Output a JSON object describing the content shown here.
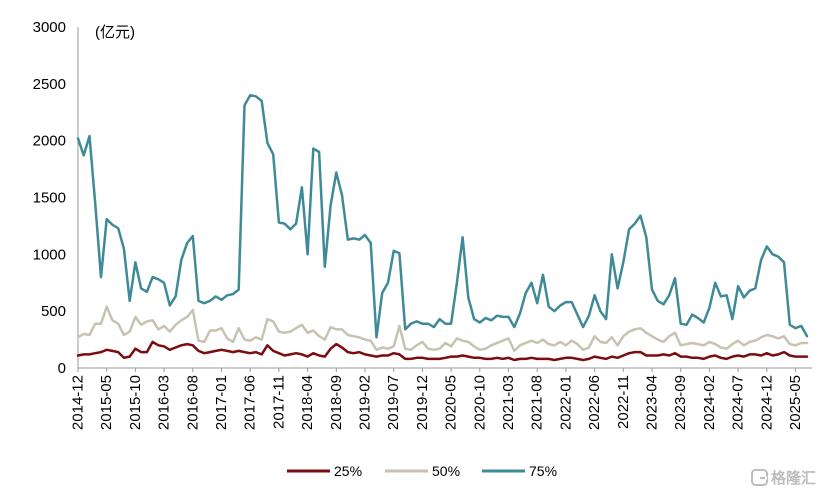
{
  "chart_data": {
    "type": "line",
    "ylabel": "(亿元)",
    "xlabel": "",
    "ylim": [
      0,
      3000
    ],
    "yticks": [
      0,
      500,
      1000,
      1500,
      2000,
      2500,
      3000
    ],
    "grid": false,
    "legend": "bottom",
    "x": [
      "2014-12",
      "2015-01",
      "2015-02",
      "2015-03",
      "2015-04",
      "2015-05",
      "2015-06",
      "2015-07",
      "2015-08",
      "2015-09",
      "2015-10",
      "2015-11",
      "2015-12",
      "2016-01",
      "2016-02",
      "2016-03",
      "2016-04",
      "2016-05",
      "2016-06",
      "2016-07",
      "2016-08",
      "2016-09",
      "2016-10",
      "2016-11",
      "2016-12",
      "2017-01",
      "2017-02",
      "2017-03",
      "2017-04",
      "2017-05",
      "2017-06",
      "2017-07",
      "2017-08",
      "2017-09",
      "2017-10",
      "2017-11",
      "2017-12",
      "2018-01",
      "2018-02",
      "2018-03",
      "2018-04",
      "2018-05",
      "2018-06",
      "2018-07",
      "2018-08",
      "2018-09",
      "2018-10",
      "2018-11",
      "2018-12",
      "2019-01",
      "2019-02",
      "2019-03",
      "2019-04",
      "2019-05",
      "2019-06",
      "2019-07",
      "2019-08",
      "2019-09",
      "2019-10",
      "2019-11",
      "2019-12",
      "2020-01",
      "2020-02",
      "2020-03",
      "2020-04",
      "2020-05",
      "2020-06",
      "2020-07",
      "2020-08",
      "2020-09",
      "2020-10",
      "2020-11",
      "2020-12",
      "2021-01",
      "2021-02",
      "2021-03",
      "2021-04",
      "2021-05",
      "2021-06",
      "2021-07",
      "2021-08",
      "2021-09",
      "2021-10",
      "2021-11",
      "2021-12",
      "2022-01",
      "2022-02",
      "2022-03",
      "2022-04",
      "2022-05",
      "2022-06",
      "2022-07",
      "2022-08",
      "2022-09",
      "2022-10",
      "2022-11",
      "2022-12",
      "2023-01",
      "2023-02",
      "2023-03",
      "2023-04",
      "2023-05",
      "2023-06",
      "2023-07",
      "2023-08",
      "2023-09",
      "2023-10",
      "2023-11",
      "2023-12",
      "2024-01",
      "2024-02",
      "2024-03",
      "2024-04",
      "2024-05",
      "2024-06",
      "2024-07",
      "2024-08",
      "2024-09",
      "2024-10",
      "2024-11",
      "2024-12",
      "2025-01",
      "2025-02",
      "2025-03",
      "2025-04",
      "2025-05",
      "2025-06",
      "2025-07"
    ],
    "series": [
      {
        "name": "25%",
        "color": "#7b0c12",
        "values": [
          110,
          120,
          120,
          130,
          140,
          160,
          150,
          140,
          90,
          100,
          170,
          140,
          140,
          230,
          200,
          190,
          160,
          180,
          200,
          210,
          200,
          150,
          130,
          140,
          150,
          160,
          150,
          140,
          150,
          140,
          130,
          140,
          120,
          200,
          150,
          130,
          110,
          120,
          130,
          120,
          100,
          130,
          110,
          100,
          170,
          210,
          180,
          140,
          130,
          140,
          120,
          110,
          100,
          110,
          110,
          130,
          120,
          80,
          80,
          90,
          90,
          80,
          80,
          80,
          90,
          100,
          100,
          110,
          100,
          90,
          90,
          80,
          80,
          90,
          80,
          90,
          70,
          80,
          80,
          90,
          80,
          80,
          80,
          70,
          80,
          90,
          90,
          80,
          70,
          80,
          100,
          90,
          80,
          100,
          90,
          110,
          130,
          140,
          140,
          110,
          110,
          110,
          120,
          110,
          130,
          100,
          100,
          90,
          90,
          80,
          100,
          110,
          90,
          80,
          100,
          110,
          100,
          120,
          120,
          110,
          130,
          110,
          120,
          140,
          110,
          100,
          100,
          100
        ]
      },
      {
        "name": "50%",
        "color": "#c8c2b3",
        "values": [
          270,
          300,
          290,
          390,
          390,
          540,
          420,
          390,
          290,
          320,
          450,
          380,
          410,
          420,
          340,
          370,
          320,
          380,
          420,
          450,
          510,
          240,
          230,
          330,
          330,
          350,
          260,
          230,
          350,
          250,
          240,
          270,
          250,
          430,
          410,
          320,
          310,
          320,
          350,
          380,
          310,
          330,
          280,
          250,
          360,
          340,
          340,
          290,
          280,
          270,
          250,
          240,
          160,
          180,
          170,
          190,
          370,
          170,
          160,
          200,
          230,
          170,
          160,
          170,
          220,
          190,
          260,
          240,
          230,
          190,
          160,
          170,
          200,
          220,
          240,
          260,
          150,
          200,
          220,
          240,
          220,
          250,
          210,
          200,
          230,
          200,
          240,
          210,
          160,
          180,
          280,
          230,
          220,
          270,
          200,
          280,
          320,
          340,
          350,
          310,
          280,
          250,
          230,
          280,
          310,
          200,
          210,
          220,
          210,
          200,
          230,
          210,
          180,
          170,
          210,
          240,
          200,
          230,
          240,
          270,
          290,
          280,
          260,
          280,
          210,
          200,
          220,
          220
        ]
      },
      {
        "name": "75%",
        "color": "#3f8a99",
        "values": [
          2020,
          1870,
          2040,
          1450,
          800,
          1310,
          1260,
          1230,
          1050,
          590,
          930,
          700,
          670,
          800,
          780,
          750,
          550,
          630,
          950,
          1100,
          1160,
          590,
          570,
          590,
          630,
          600,
          640,
          650,
          690,
          2310,
          2400,
          2390,
          2350,
          1980,
          1880,
          1280,
          1270,
          1220,
          1270,
          1590,
          1000,
          1930,
          1900,
          890,
          1430,
          1720,
          1520,
          1130,
          1140,
          1130,
          1170,
          1100,
          270,
          660,
          750,
          1030,
          1010,
          340,
          390,
          410,
          390,
          390,
          360,
          430,
          390,
          390,
          750,
          1150,
          620,
          430,
          400,
          440,
          420,
          460,
          450,
          450,
          360,
          480,
          660,
          750,
          570,
          820,
          540,
          500,
          550,
          580,
          580,
          470,
          360,
          460,
          640,
          500,
          430,
          1000,
          700,
          930,
          1220,
          1270,
          1340,
          1150,
          690,
          590,
          560,
          640,
          790,
          390,
          380,
          470,
          440,
          400,
          530,
          750,
          630,
          640,
          430,
          720,
          620,
          680,
          700,
          950,
          1070,
          1000,
          980,
          930,
          380,
          350,
          370,
          280
        ]
      }
    ]
  },
  "watermark": {
    "text": "格隆汇",
    "logo_icon": "gelonghui-logo-icon",
    "color": "#bdbdbd"
  }
}
